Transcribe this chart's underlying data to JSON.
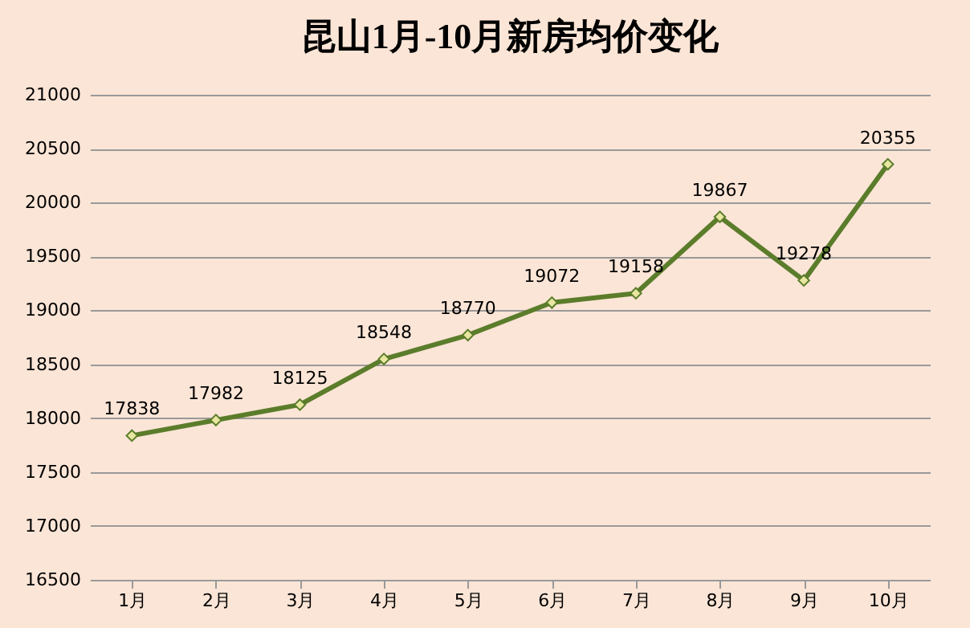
{
  "chart_data": {
    "type": "line",
    "title": "昆山1月-10月新房均价变化",
    "categories": [
      "1月",
      "2月",
      "3月",
      "4月",
      "5月",
      "6月",
      "7月",
      "8月",
      "9月",
      "10月"
    ],
    "series": [
      {
        "color": "#5b7d2b",
        "values": [
          17838,
          17982,
          18125,
          18548,
          18770,
          19072,
          19158,
          19867,
          19278,
          20355
        ]
      }
    ],
    "ylim": [
      16500,
      21000
    ],
    "yticks": [
      16500,
      17000,
      17500,
      18000,
      18500,
      19000,
      19500,
      20000,
      20500,
      21000
    ],
    "grid": "y",
    "marker": "diamond",
    "line_style": "solid",
    "data_labels": true
  }
}
